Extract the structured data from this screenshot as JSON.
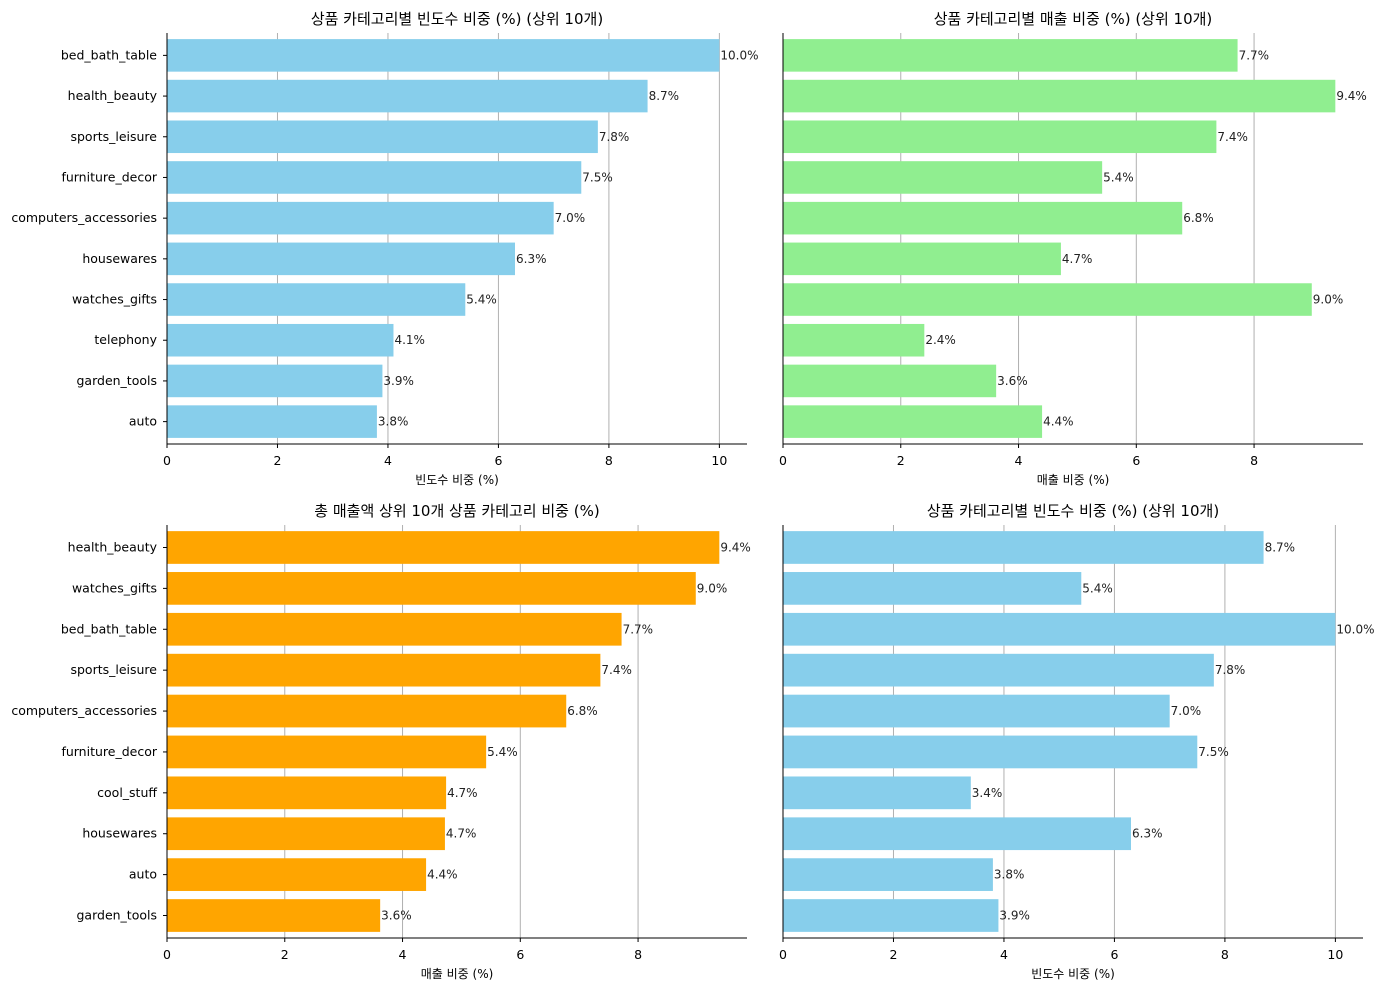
{
  "chart_data": [
    {
      "type": "bar",
      "orientation": "horizontal",
      "title": "상품 카테고리별 빈도수 비중 (%) (상위 10개)",
      "xlabel": "빈도수 비중 (%)",
      "ylabel": "",
      "xlim": [
        0,
        10.5
      ],
      "xticks": [
        0,
        2,
        4,
        6,
        8,
        10
      ],
      "xtick_labels": [
        "0",
        "2",
        "4",
        "6",
        "8",
        "10"
      ],
      "grid": "x",
      "show_yticklabels": true,
      "color": "#87ceeb",
      "categories": [
        "bed_bath_table",
        "health_beauty",
        "sports_leisure",
        "furniture_decor",
        "computers_accessories",
        "housewares",
        "watches_gifts",
        "telephony",
        "garden_tools",
        "auto"
      ],
      "values": [
        10.0,
        8.7,
        7.8,
        7.5,
        7.0,
        6.3,
        5.4,
        4.1,
        3.9,
        3.8
      ],
      "value_labels": [
        "10.0%",
        "8.7%",
        "7.8%",
        "7.5%",
        "7.0%",
        "6.3%",
        "5.4%",
        "4.1%",
        "3.9%",
        "3.8%"
      ]
    },
    {
      "type": "bar",
      "orientation": "horizontal",
      "title": "상품 카테고리별 매출 비중 (%) (상위 10개)",
      "xlabel": "매출 비중 (%)",
      "ylabel": "",
      "xlim": [
        0,
        9.85
      ],
      "xticks": [
        0,
        2,
        4,
        6,
        8
      ],
      "xtick_labels": [
        "0",
        "2",
        "4",
        "6",
        "8"
      ],
      "grid": "x",
      "show_yticklabels": false,
      "color": "#90ee90",
      "categories": [
        "bed_bath_table",
        "health_beauty",
        "sports_leisure",
        "furniture_decor",
        "computers_accessories",
        "housewares",
        "watches_gifts",
        "telephony",
        "garden_tools",
        "auto"
      ],
      "values": [
        7.72,
        9.38,
        7.36,
        5.42,
        6.78,
        4.72,
        8.98,
        2.4,
        3.62,
        4.4
      ],
      "value_labels": [
        "7.7%",
        "9.4%",
        "7.4%",
        "5.4%",
        "6.8%",
        "4.7%",
        "9.0%",
        "2.4%",
        "3.6%",
        "4.4%"
      ]
    },
    {
      "type": "bar",
      "orientation": "horizontal",
      "title": "총 매출액 상위 10개 상품 카테고리 비중 (%)",
      "xlabel": "매출 비중 (%)",
      "ylabel": "",
      "xlim": [
        0,
        9.85
      ],
      "xticks": [
        0,
        2,
        4,
        6,
        8
      ],
      "xtick_labels": [
        "0",
        "2",
        "4",
        "6",
        "8"
      ],
      "grid": "x",
      "show_yticklabels": true,
      "color": "#ffa500",
      "categories": [
        "health_beauty",
        "watches_gifts",
        "bed_bath_table",
        "sports_leisure",
        "computers_accessories",
        "furniture_decor",
        "cool_stuff",
        "housewares",
        "auto",
        "garden_tools"
      ],
      "values": [
        9.38,
        8.98,
        7.72,
        7.36,
        6.78,
        5.42,
        4.74,
        4.72,
        4.4,
        3.62
      ],
      "value_labels": [
        "9.4%",
        "9.0%",
        "7.7%",
        "7.4%",
        "6.8%",
        "5.4%",
        "4.7%",
        "4.7%",
        "4.4%",
        "3.6%"
      ]
    },
    {
      "type": "bar",
      "orientation": "horizontal",
      "title": "상품 카테고리별 빈도수 비중 (%) (상위 10개)",
      "xlabel": "빈도수 비중 (%)",
      "ylabel": "",
      "xlim": [
        0,
        10.5
      ],
      "xticks": [
        0,
        2,
        4,
        6,
        8,
        10
      ],
      "xtick_labels": [
        "0",
        "2",
        "4",
        "6",
        "8",
        "10"
      ],
      "grid": "x",
      "show_yticklabels": false,
      "color": "#87ceeb",
      "categories": [
        "health_beauty",
        "watches_gifts",
        "bed_bath_table",
        "sports_leisure",
        "computers_accessories",
        "furniture_decor",
        "cool_stuff",
        "housewares",
        "auto",
        "garden_tools"
      ],
      "values": [
        8.7,
        5.4,
        10.0,
        7.8,
        7.0,
        7.5,
        3.4,
        6.3,
        3.8,
        3.9
      ],
      "value_labels": [
        "8.7%",
        "5.4%",
        "10.0%",
        "7.8%",
        "7.0%",
        "7.5%",
        "3.4%",
        "6.3%",
        "3.8%",
        "3.9%"
      ]
    }
  ]
}
